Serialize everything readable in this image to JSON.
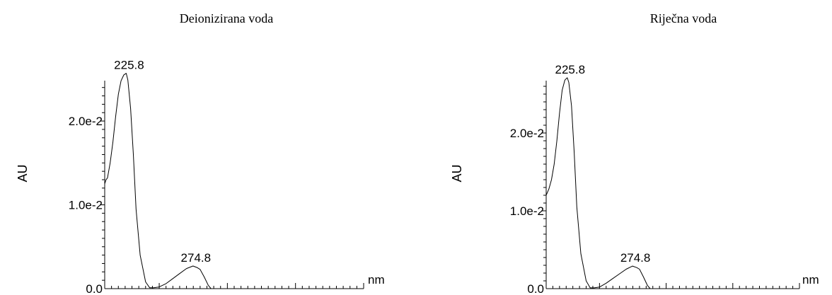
{
  "chart_data": [
    {
      "type": "line",
      "title": "Deionizirana voda",
      "ylabel": "AU",
      "xunit": "nm",
      "xlim": [
        210,
        400
      ],
      "ylim": [
        0,
        0.026
      ],
      "xticks": [
        250,
        300,
        350,
        400
      ],
      "yticks": [
        {
          "value": 0.0,
          "label": "0.0"
        },
        {
          "value": 0.01,
          "label": "1.0e-2"
        },
        {
          "value": 0.02,
          "label": "2.0e-2"
        }
      ],
      "peaks": [
        {
          "x": 225.8,
          "y": 0.0257,
          "label": "225.8"
        },
        {
          "x": 274.8,
          "y": 0.0027,
          "label": "274.8"
        }
      ],
      "series": [
        {
          "x": [
            210,
            211,
            212,
            214,
            216,
            218,
            220,
            222,
            224,
            225.8,
            227,
            229,
            231,
            233,
            236,
            240,
            243,
            246,
            250,
            255,
            260,
            265,
            270,
            274.8,
            278,
            280,
            283,
            286,
            288
          ],
          "values": [
            0.0125,
            0.013,
            0.0132,
            0.015,
            0.0175,
            0.0205,
            0.0232,
            0.0248,
            0.0255,
            0.0257,
            0.0249,
            0.0215,
            0.016,
            0.0095,
            0.004,
            0.0008,
            0.0001,
            0.0001,
            0.0002,
            0.0006,
            0.0012,
            0.0018,
            0.0024,
            0.0027,
            0.0025,
            0.0023,
            0.0014,
            0.0004,
            0.0
          ]
        }
      ]
    },
    {
      "type": "line",
      "title": "Riječna voda",
      "ylabel": "AU",
      "xunit": "nm",
      "xlim": [
        210,
        400
      ],
      "ylim": [
        0,
        0.028
      ],
      "xticks": [
        250,
        300,
        350,
        400
      ],
      "yticks": [
        {
          "value": 0.0,
          "label": "0.0"
        },
        {
          "value": 0.01,
          "label": "1.0e-2"
        },
        {
          "value": 0.02,
          "label": "2.0e-2"
        }
      ],
      "peaks": [
        {
          "x": 225.8,
          "y": 0.0271,
          "label": "225.8"
        },
        {
          "x": 274.8,
          "y": 0.0029,
          "label": "274.8"
        }
      ],
      "series": [
        {
          "x": [
            210,
            212,
            214,
            216,
            218,
            220,
            222,
            224,
            225.8,
            227,
            229,
            231,
            233,
            236,
            240,
            243,
            246,
            250,
            255,
            260,
            265,
            270,
            274.8,
            278,
            280,
            283,
            286,
            288
          ],
          "values": [
            0.012,
            0.0128,
            0.014,
            0.016,
            0.019,
            0.0225,
            0.0255,
            0.0268,
            0.0271,
            0.0265,
            0.0235,
            0.0175,
            0.0105,
            0.0045,
            0.001,
            0.0001,
            0.0001,
            0.0002,
            0.0007,
            0.0013,
            0.0019,
            0.0025,
            0.0029,
            0.0027,
            0.0025,
            0.0015,
            0.0004,
            0.0
          ]
        }
      ]
    }
  ]
}
